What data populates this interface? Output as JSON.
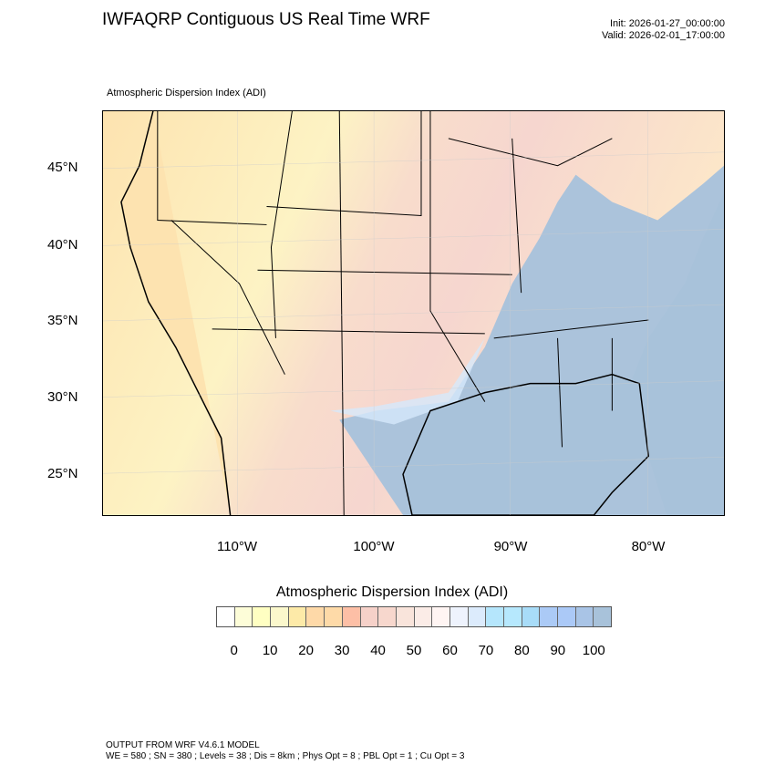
{
  "header": {
    "title": "IWFAQRP Contiguous US Real Time WRF",
    "init": "Init: 2026-01-27_00:00:00",
    "valid": "Valid: 2026-02-01_17:00:00"
  },
  "map": {
    "field_label": "Atmospheric Dispersion Index   (ADI)",
    "lat_labels": [
      "45°N",
      "40°N",
      "35°N",
      "30°N",
      "25°N"
    ],
    "lon_labels": [
      "110°W",
      "100°W",
      "90°W",
      "80°W"
    ]
  },
  "colorbar": {
    "title": "Atmospheric Dispersion Index  (ADI)",
    "labels": [
      "0",
      "10",
      "20",
      "30",
      "40",
      "50",
      "60",
      "70",
      "80",
      "90",
      "100"
    ],
    "colors": [
      "#ffffff",
      "#fdfdd8",
      "#ffffc2",
      "#fbf8cc",
      "#fdeaa8",
      "#fed9a8",
      "#fedaa8",
      "#fdbfa6",
      "#f6d1c9",
      "#f7d7cd",
      "#f9e4db",
      "#fbece7",
      "#fff5f3",
      "#eef3fd",
      "#dcebfc",
      "#b5e6fc",
      "#b6e8fd",
      "#a8dcf8",
      "#abcaf6",
      "#abc9f7",
      "#a9c4e6",
      "#a8c2da"
    ]
  },
  "footer": {
    "line1": "OUTPUT FROM WRF V4.6.1 MODEL",
    "line2": "WE = 580 ; SN = 380 ; Levels = 38 ; Dis = 8km ; Phys Opt = 8 ; PBL Opt = 1 ; Cu Opt = 3"
  }
}
